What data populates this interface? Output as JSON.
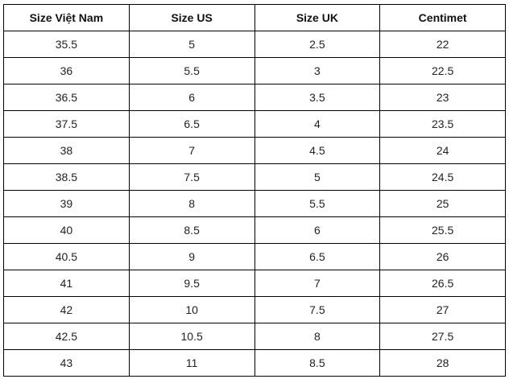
{
  "table": {
    "header": [
      "Size Việt Nam",
      "Size US",
      "Size UK",
      "Centimet"
    ],
    "rows": [
      [
        "35.5",
        "5",
        "2.5",
        "22"
      ],
      [
        "36",
        "5.5",
        "3",
        "22.5"
      ],
      [
        "36.5",
        "6",
        "3.5",
        "23"
      ],
      [
        "37.5",
        "6.5",
        "4",
        "23.5"
      ],
      [
        "38",
        "7",
        "4.5",
        "24"
      ],
      [
        "38.5",
        "7.5",
        "5",
        "24.5"
      ],
      [
        "39",
        "8",
        "5.5",
        "25"
      ],
      [
        "40",
        "8.5",
        "6",
        "25.5"
      ],
      [
        "40.5",
        "9",
        "6.5",
        "26"
      ],
      [
        "41",
        "9.5",
        "7",
        "26.5"
      ],
      [
        "42",
        "10",
        "7.5",
        "27"
      ],
      [
        "42.5",
        "10.5",
        "8",
        "27.5"
      ],
      [
        "43",
        "11",
        "8.5",
        "28"
      ]
    ]
  }
}
